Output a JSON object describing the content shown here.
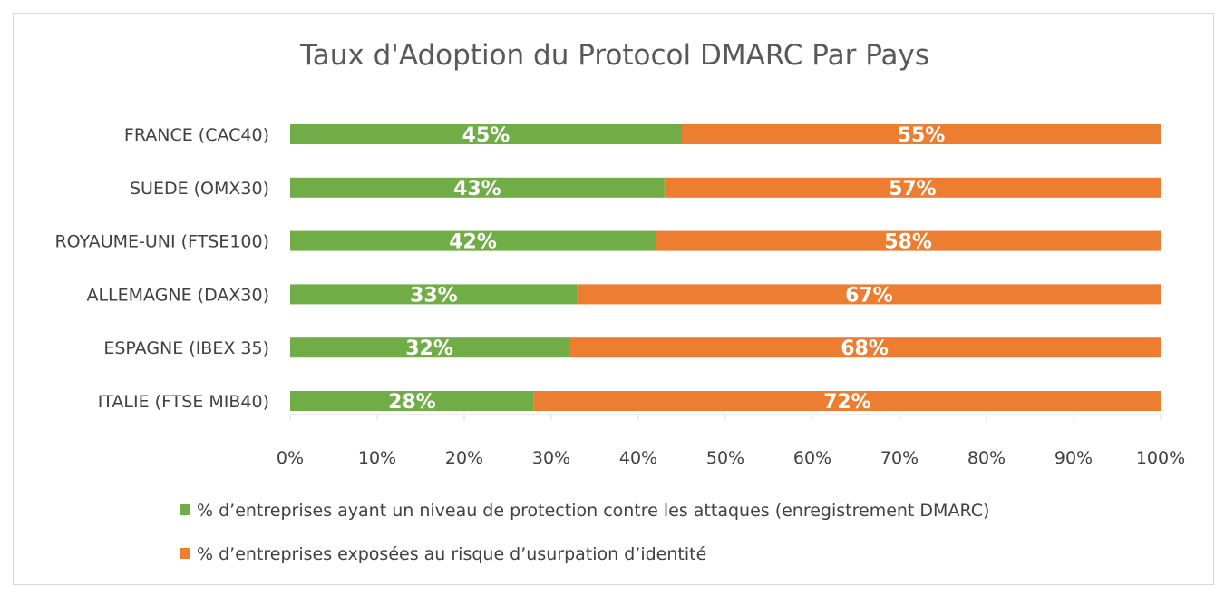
{
  "chart_data": {
    "type": "bar",
    "orientation": "horizontal",
    "stacked": true,
    "title": "Taux d'Adoption du Protocol DMARC Par Pays",
    "categories": [
      "FRANCE (CAC40)",
      "SUEDE (OMX30)",
      "ROYAUME-UNI (FTSE100)",
      "ALLEMAGNE (DAX30)",
      "ESPAGNE (IBEX 35)",
      "ITALIE (FTSE MIB40)"
    ],
    "series": [
      {
        "name": "% d’entreprises ayant un niveau de protection contre les attaques (enregistrement DMARC)",
        "color": "#70ad47",
        "values": [
          45,
          43,
          42,
          33,
          32,
          28
        ],
        "labels": [
          "45%",
          "43%",
          "42%",
          "33%",
          "32%",
          "28%"
        ]
      },
      {
        "name": "% d’entreprises exposées au risque d’usurpation d’identité",
        "color": "#ed7d31",
        "values": [
          55,
          57,
          58,
          67,
          68,
          72
        ],
        "labels": [
          "55%",
          "57%",
          "58%",
          "67%",
          "68%",
          "72%"
        ]
      }
    ],
    "xlim": [
      0,
      100
    ],
    "xticks": [
      0,
      10,
      20,
      30,
      40,
      50,
      60,
      70,
      80,
      90,
      100
    ],
    "xtick_labels": [
      "0%",
      "10%",
      "20%",
      "30%",
      "40%",
      "50%",
      "60%",
      "70%",
      "80%",
      "90%",
      "100%"
    ],
    "grid": false,
    "legend_position": "bottom"
  }
}
